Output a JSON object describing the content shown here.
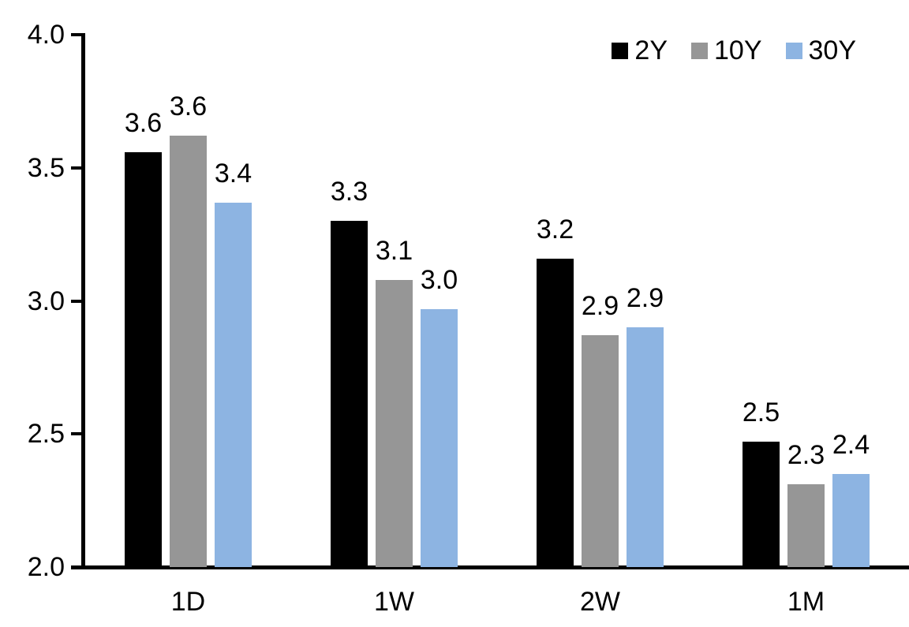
{
  "chart_data": {
    "type": "bar",
    "title": "",
    "xlabel": "",
    "ylabel": "",
    "categories": [
      "1D",
      "1W",
      "2W",
      "1M"
    ],
    "series": [
      {
        "name": "2Y",
        "color": "#000000",
        "values": [
          3.56,
          3.3,
          3.16,
          2.47
        ],
        "labels": [
          "3.6",
          "3.3",
          "3.2",
          "2.5"
        ]
      },
      {
        "name": "10Y",
        "color": "#969696",
        "values": [
          3.62,
          3.08,
          2.87,
          2.31
        ],
        "labels": [
          "3.6",
          "3.1",
          "2.9",
          "2.3"
        ]
      },
      {
        "name": "30Y",
        "color": "#8DB4E2",
        "values": [
          3.37,
          2.97,
          2.9,
          2.35
        ],
        "labels": [
          "3.4",
          "3.0",
          "2.9",
          "2.4"
        ]
      }
    ],
    "ylim": [
      2.0,
      4.0
    ],
    "yticks": [
      {
        "value": 4.0,
        "label": "4.0"
      },
      {
        "value": 3.5,
        "label": "3.5"
      },
      {
        "value": 3.0,
        "label": "3.0"
      },
      {
        "value": 2.5,
        "label": "2.5"
      },
      {
        "value": 2.0,
        "label": "2.0"
      }
    ],
    "grid": false,
    "legend_position": "top-right",
    "axis_color": "#000000",
    "text_color": "#000000",
    "background": "#FFFFFF"
  }
}
